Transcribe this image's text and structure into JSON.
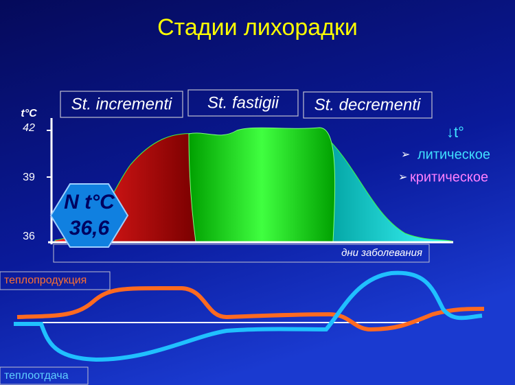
{
  "title": "Стадии лихорадки",
  "stages": [
    "St. incrementi",
    "St. fastigii",
    "St. decrementi"
  ],
  "axis": {
    "label": "t°C",
    "ticks": [
      "42",
      "39",
      "36"
    ],
    "x_label": "дни заболевания"
  },
  "normal": {
    "label": "N t°C",
    "value": "36,6"
  },
  "decline": {
    "title": "↓t°",
    "items": [
      "литическое",
      "критическое"
    ]
  },
  "lower": {
    "production": "теплопродукция",
    "loss": "теплоотдача"
  }
}
